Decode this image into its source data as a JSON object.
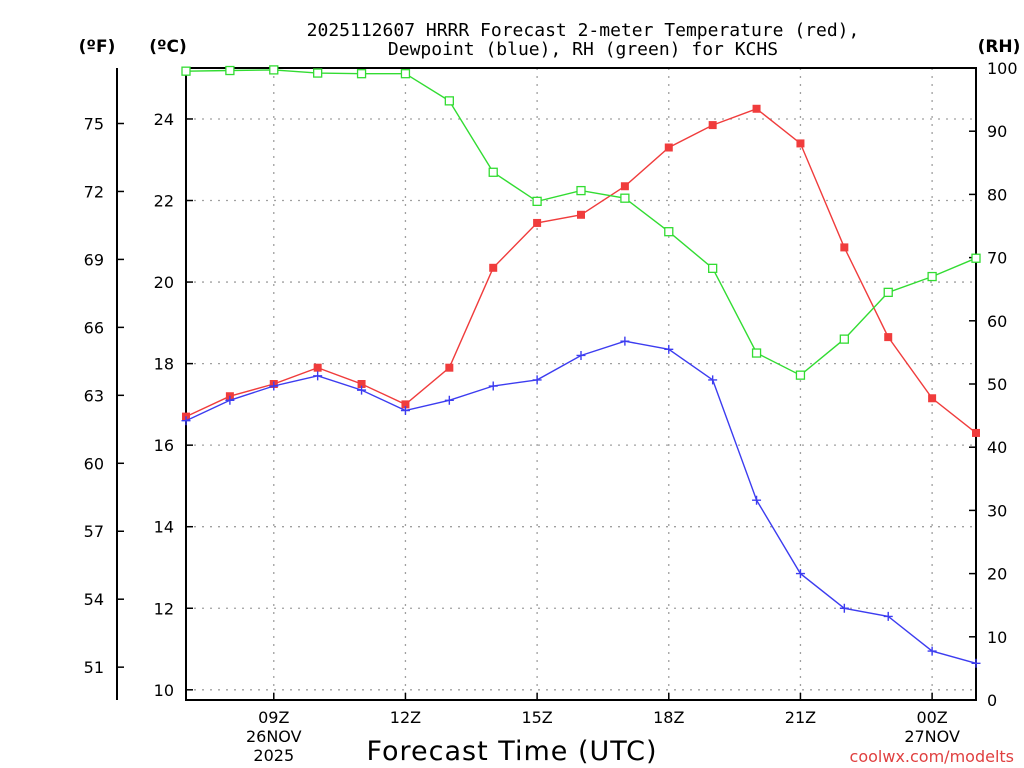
{
  "chart_data": {
    "type": "line",
    "title_line1": "2025112607 HRRR Forecast 2-meter Temperature (red),",
    "title_line2": "Dewpoint (blue), RH (green) for KCHS",
    "left_axis_f": {
      "unit_label": "(ºF)",
      "ticks": [
        75,
        72,
        69,
        66,
        63,
        60,
        57,
        54,
        51
      ]
    },
    "left_axis_c": {
      "unit_label": "(ºC)",
      "range": [
        9.75,
        25.25
      ],
      "ticks": [
        24,
        22,
        20,
        18,
        16,
        14,
        12,
        10
      ]
    },
    "right_axis_rh": {
      "unit_label": "(RH)",
      "range": [
        0,
        100
      ],
      "ticks": [
        100,
        90,
        80,
        70,
        60,
        50,
        40,
        30,
        20,
        10,
        0
      ]
    },
    "x": [
      7,
      8,
      9,
      10,
      11,
      12,
      13,
      14,
      15,
      16,
      17,
      18,
      19,
      20,
      21,
      22,
      23,
      24,
      25
    ],
    "x_ticks": [
      {
        "x": 9,
        "label": "09Z",
        "sub1": "26NOV",
        "sub2": "2025"
      },
      {
        "x": 12,
        "label": "12Z",
        "sub1": "",
        "sub2": ""
      },
      {
        "x": 15,
        "label": "15Z",
        "sub1": "",
        "sub2": ""
      },
      {
        "x": 18,
        "label": "18Z",
        "sub1": "",
        "sub2": ""
      },
      {
        "x": 21,
        "label": "21Z",
        "sub1": "",
        "sub2": ""
      },
      {
        "x": 24,
        "label": "00Z",
        "sub1": "27NOV",
        "sub2": ""
      }
    ],
    "xlabel": "Forecast Time (UTC)",
    "credit": "coolwx.com/modelts",
    "series": [
      {
        "name": "Temperature",
        "unit": "C",
        "color": "#f03c3c",
        "marker": "filled-square",
        "values": [
          16.7,
          17.2,
          17.5,
          17.9,
          17.5,
          17.0,
          17.9,
          20.35,
          21.45,
          21.65,
          22.35,
          23.3,
          23.85,
          24.25,
          23.4,
          20.85,
          18.65,
          17.15,
          16.3
        ]
      },
      {
        "name": "Dewpoint",
        "unit": "C",
        "color": "#3c3cf0",
        "marker": "plus",
        "values": [
          16.6,
          17.1,
          17.45,
          17.7,
          17.35,
          16.85,
          17.1,
          17.45,
          17.6,
          18.2,
          18.55,
          18.35,
          17.6,
          14.65,
          12.85,
          12.0,
          11.8,
          10.95,
          10.65
        ]
      },
      {
        "name": "RH",
        "unit": "%",
        "color": "#32dc32",
        "marker": "open-square",
        "values": [
          99.5,
          99.6,
          99.7,
          99.2,
          99.1,
          99.1,
          94.8,
          83.5,
          78.9,
          80.6,
          79.4,
          74.1,
          68.3,
          54.9,
          51.4,
          57.1,
          64.5,
          67.0,
          69.9
        ]
      }
    ]
  }
}
